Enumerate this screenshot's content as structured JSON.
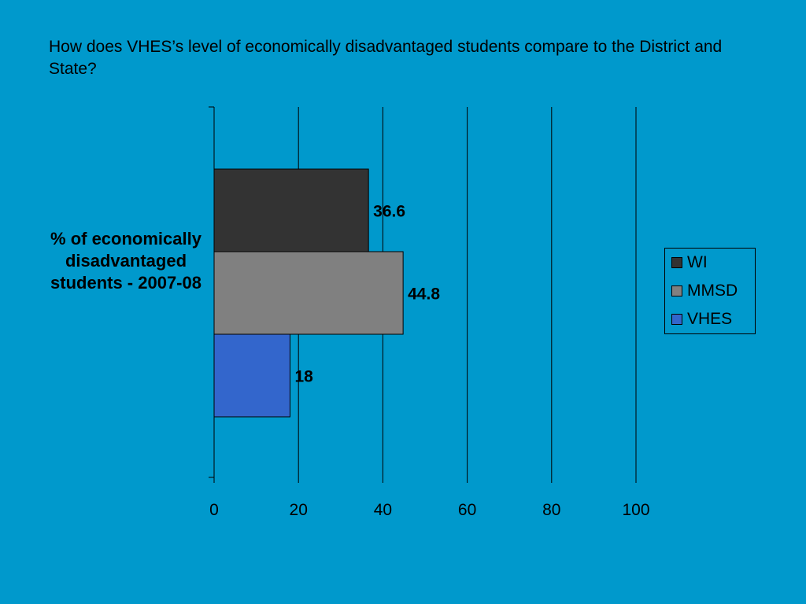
{
  "title": "How does VHES’s level of economically disadvantaged students compare to the District and State?",
  "chart_data": {
    "type": "bar",
    "orientation": "horizontal",
    "category_label": "% of economically disadvantaged students - 2007-08",
    "series": [
      {
        "name": "WI",
        "value": 36.6,
        "color": "#333333"
      },
      {
        "name": "MMSD",
        "value": 44.8,
        "color": "#808080"
      },
      {
        "name": "VHES",
        "value": 18,
        "color": "#3366cc"
      }
    ],
    "xlim": [
      0,
      100
    ],
    "x_ticks": [
      0,
      20,
      40,
      60,
      80,
      100
    ],
    "grid": true,
    "legend_position": "right"
  }
}
